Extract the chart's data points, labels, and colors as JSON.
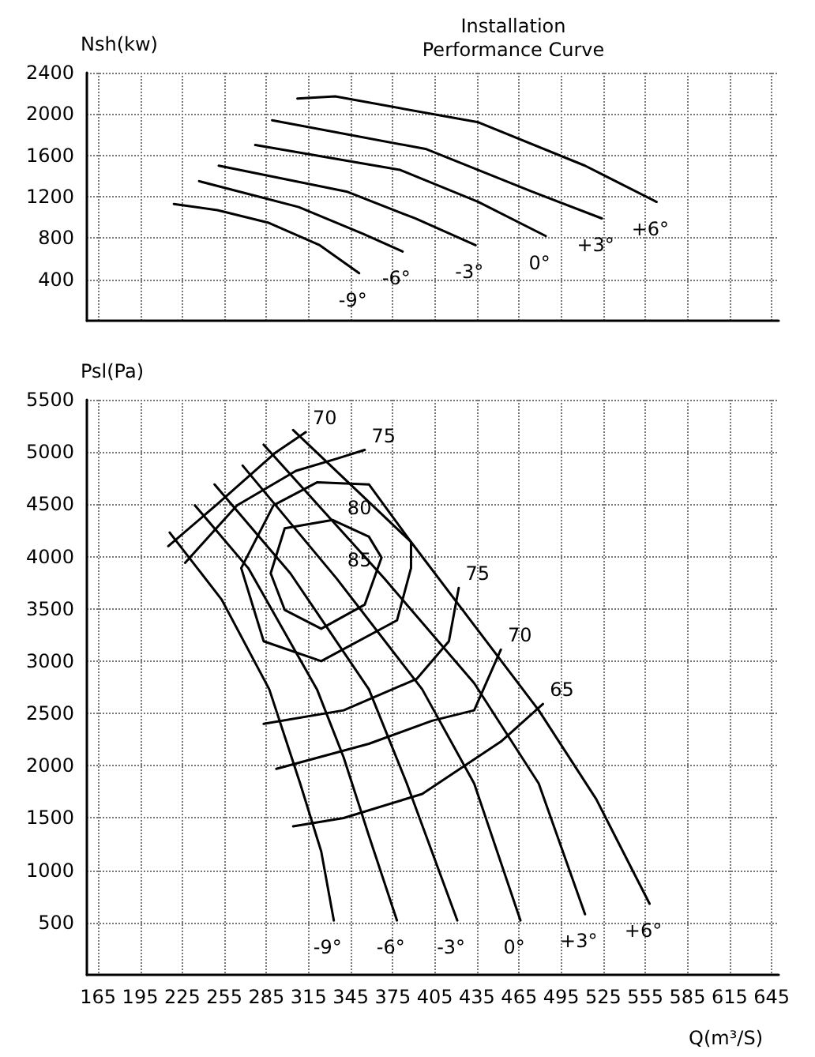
{
  "chart_data": [
    {
      "type": "line",
      "title": "Installation\nPerformance Curve",
      "ylabel": "Nsh(kw)",
      "xlim": [
        157,
        650
      ],
      "xticks": [
        165,
        195,
        225,
        255,
        285,
        315,
        345,
        375,
        405,
        435,
        465,
        495,
        525,
        555,
        585,
        615,
        645
      ],
      "ylim": [
        0,
        2400
      ],
      "yticks": [
        400,
        800,
        1200,
        1600,
        2000,
        2400
      ],
      "tick_labels": "y",
      "grid": true,
      "marker": "none",
      "line_style": "solid",
      "series": [
        {
          "name": "-9°",
          "color": "#000000",
          "x": [
            351,
            323,
            286,
            250,
            219
          ],
          "values": [
            460,
            730,
            950,
            1070,
            1130
          ]
        },
        {
          "name": "-6°",
          "color": "#000000",
          "x": [
            382,
            354,
            308,
            237
          ],
          "values": [
            670,
            840,
            1100,
            1350
          ]
        },
        {
          "name": "-3°",
          "color": "#000000",
          "x": [
            434,
            391,
            342,
            251
          ],
          "values": [
            730,
            990,
            1250,
            1500
          ]
        },
        {
          "name": "0°",
          "color": "#000000",
          "x": [
            484,
            436,
            380,
            277
          ],
          "values": [
            820,
            1150,
            1460,
            1700
          ]
        },
        {
          "name": "+3°",
          "color": "#000000",
          "x": [
            524,
            474,
            399,
            289
          ],
          "values": [
            990,
            1250,
            1660,
            1940
          ]
        },
        {
          "name": "+6°",
          "color": "#000000",
          "x": [
            563,
            512,
            436,
            334,
            307
          ],
          "values": [
            1150,
            1500,
            1920,
            2170,
            2150
          ]
        }
      ]
    },
    {
      "type": "line",
      "ylabel": "Psl(Pa)",
      "xlabel": "Q(m³/S)",
      "xlim": [
        157,
        650
      ],
      "xticks": [
        165,
        195,
        225,
        255,
        285,
        315,
        345,
        375,
        405,
        435,
        465,
        495,
        525,
        555,
        585,
        615,
        645
      ],
      "ylim": [
        0,
        5500
      ],
      "yticks": [
        500,
        1000,
        1500,
        2000,
        2500,
        3000,
        3500,
        4000,
        4500,
        5000,
        5500
      ],
      "grid": true,
      "marker": "none",
      "line_style": "solid",
      "series": [
        {
          "name": "-9°",
          "color": "#000000",
          "x": [
            333,
            324,
            309,
            287,
            253,
            216
          ],
          "values": [
            520,
            1180,
            1830,
            2730,
            3590,
            4230
          ]
        },
        {
          "name": "-6°",
          "color": "#000000",
          "x": [
            378,
            358,
            340,
            321,
            272,
            234
          ],
          "values": [
            520,
            1330,
            2080,
            2730,
            3890,
            4490
          ]
        },
        {
          "name": "-3°",
          "color": "#000000",
          "x": [
            421,
            385,
            358,
            302,
            248
          ],
          "values": [
            520,
            1830,
            2730,
            3840,
            4690
          ]
        },
        {
          "name": "0°",
          "color": "#000000",
          "x": [
            466,
            433,
            396,
            335,
            268
          ],
          "values": [
            520,
            1830,
            2730,
            3790,
            4870
          ]
        },
        {
          "name": "+3°",
          "color": "#000000",
          "x": [
            512,
            479,
            433,
            369,
            283
          ],
          "values": [
            580,
            1830,
            2790,
            3790,
            5070
          ]
        },
        {
          "name": "+6°",
          "color": "#000000",
          "x": [
            558,
            520,
            479,
            388,
            304
          ],
          "values": [
            680,
            1680,
            2530,
            4140,
            5210
          ]
        },
        {
          "name": "85",
          "color": "#000000",
          "x": [
            358,
            332,
            298,
            288,
            null,
            288,
            298,
            324,
            355,
            367,
            null,
            367,
            358
          ],
          "values": [
            4190,
            4350,
            4270,
            3840,
            null,
            3840,
            3490,
            3310,
            3540,
            3990,
            null,
            3990,
            4190
          ]
        },
        {
          "name": "80",
          "color": "#000000",
          "x": [
            358,
            321,
            290,
            267,
            null,
            267,
            283,
            324,
            378,
            388,
            null,
            388,
            388,
            358
          ],
          "values": [
            4690,
            4710,
            4490,
            3890,
            null,
            3890,
            3190,
            3000,
            3390,
            3890,
            null,
            3890,
            4140,
            4690
          ]
        },
        {
          "name": "75",
          "color": "#000000",
          "x": [
            355,
            336,
            306,
            264,
            227,
            null,
            422,
            415,
            392,
            340,
            283
          ],
          "values": [
            5020,
            4940,
            4820,
            4490,
            3940,
            null,
            3700,
            3190,
            2830,
            2530,
            2400
          ]
        },
        {
          "name": "70",
          "color": "#000000",
          "x": [
            313,
            291,
            249,
            215,
            null,
            452,
            433,
            403,
            358,
            292
          ],
          "values": [
            5190,
            4990,
            4490,
            4100,
            null,
            3110,
            2530,
            2430,
            2210,
            1970
          ]
        },
        {
          "name": "65",
          "color": "#000000",
          "x": [
            482,
            452,
            396,
            340,
            304
          ],
          "values": [
            2590,
            2230,
            1730,
            1500,
            1420
          ]
        }
      ]
    }
  ]
}
